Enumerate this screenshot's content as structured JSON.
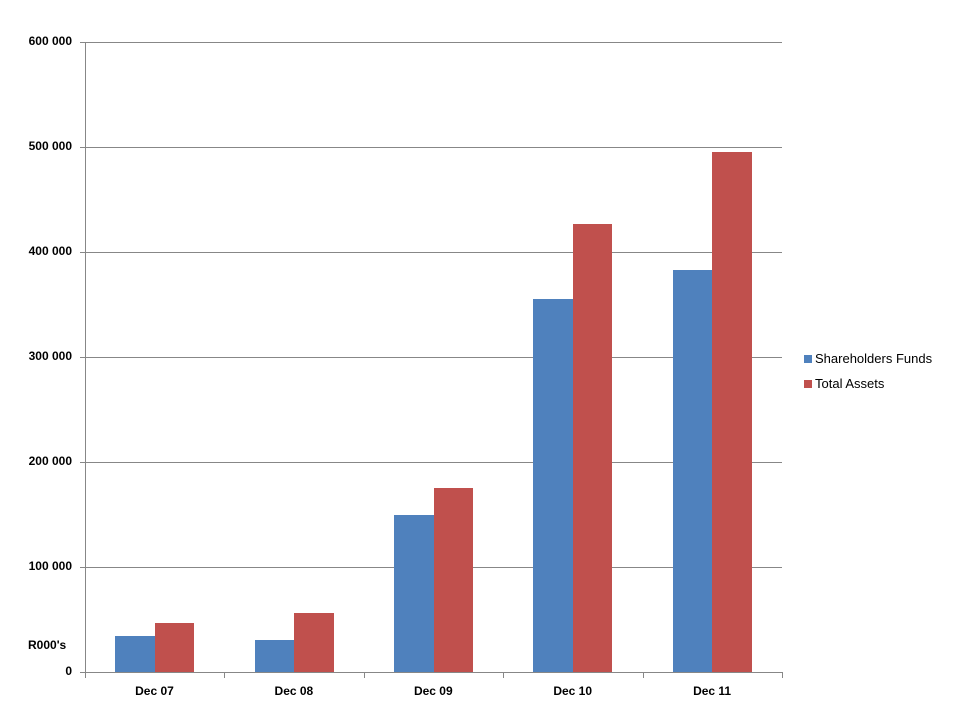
{
  "chart_data": {
    "type": "bar",
    "title": "",
    "xlabel": "",
    "ylabel": "R000's",
    "ylim": [
      0,
      600000
    ],
    "yticks": [
      0,
      100000,
      200000,
      300000,
      400000,
      500000,
      600000
    ],
    "ytick_labels": [
      "0",
      "100 000",
      "200 000",
      "300 000",
      "400 000",
      "500 000",
      "600 000"
    ],
    "grid": true,
    "legend_position": "right",
    "categories": [
      "Dec 07",
      "Dec 08",
      "Dec 09",
      "Dec 10",
      "Dec 11"
    ],
    "series": [
      {
        "name": "Shareholders Funds",
        "color": "#4f81bd",
        "values": [
          34000,
          30500,
          149500,
          355000,
          383000
        ]
      },
      {
        "name": "Total Assets",
        "color": "#c0504d",
        "values": [
          47000,
          56000,
          175000,
          427000,
          495000
        ]
      }
    ]
  }
}
